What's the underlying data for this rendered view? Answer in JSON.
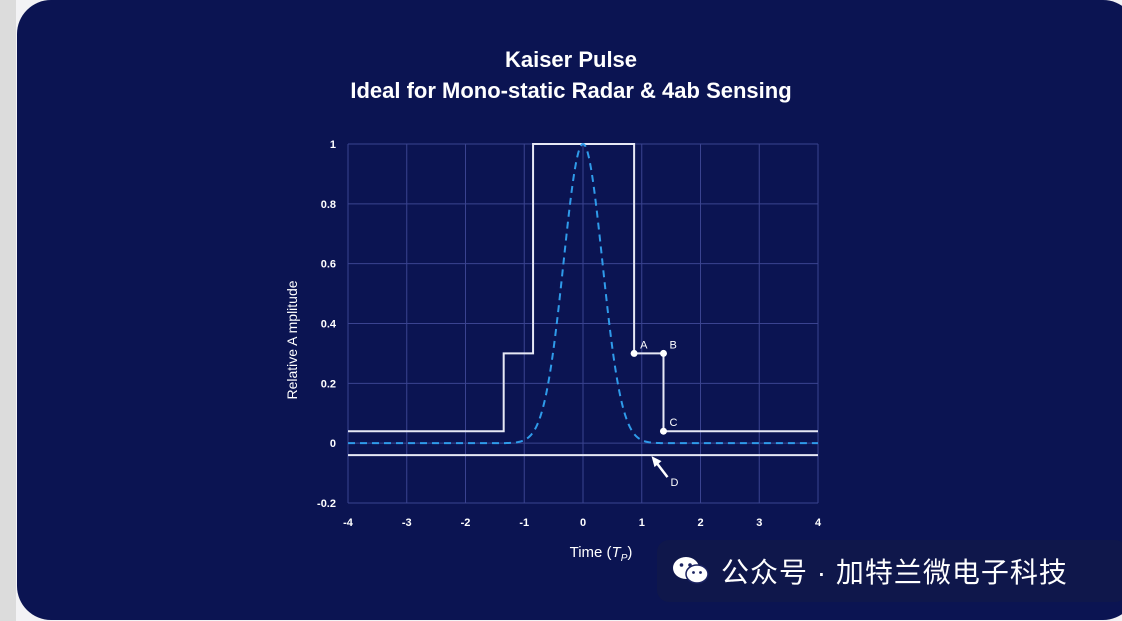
{
  "window": {
    "frame_color": "#0b1452"
  },
  "chart_data": {
    "type": "line",
    "title": "Kaiser Pulse",
    "subtitle": "Ideal for Mono-static Radar & 4ab Sensing",
    "xlabel": "Time (",
    "xlabel_var": "T",
    "xlabel_sub": "P",
    "xlabel_close": ")",
    "ylabel": "Relative A mplitude",
    "xlim": [
      -4,
      4
    ],
    "ylim": [
      -0.2,
      1
    ],
    "x_ticks": [
      "-4",
      "-3",
      "-2",
      "-1",
      "0",
      "1",
      "2",
      "3",
      "4"
    ],
    "y_ticks": [
      "-0.2",
      "0",
      "0.2",
      "0.4",
      "0.6",
      "0.8",
      "1"
    ],
    "grid": true,
    "series": [
      {
        "style": "solid",
        "color": "#e6e8f5",
        "x": [
          -4,
          -1.35,
          -1.35,
          -0.85,
          -0.85,
          0.87,
          0.87,
          1.37,
          1.37,
          4
        ],
        "y": [
          0.04,
          0.04,
          0.3,
          0.3,
          1,
          1,
          0.3,
          0.3,
          0.04,
          0.04
        ]
      },
      {
        "style": "solid",
        "color": "#e6e8f5",
        "x": [
          -4,
          4
        ],
        "y": [
          -0.04,
          -0.04
        ]
      },
      {
        "style": "dashed",
        "color": "#2f9bea",
        "shape": "gaussian",
        "x_range": [
          -4,
          4
        ],
        "peak": 1,
        "sigma": 0.33
      }
    ],
    "annotations": [
      {
        "label": "A",
        "x": 0.87,
        "y": 0.3
      },
      {
        "label": "B",
        "x": 1.37,
        "y": 0.3
      },
      {
        "label": "C",
        "x": 1.37,
        "y": 0.04
      },
      {
        "label": "D",
        "x": 1.2,
        "y": -0.04
      }
    ]
  },
  "watermark": {
    "text": "公众号 · 加特兰微电子科技",
    "icon": "wechat-icon"
  }
}
